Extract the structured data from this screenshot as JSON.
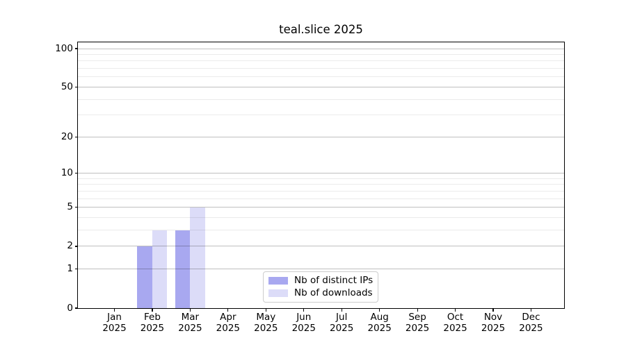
{
  "chart_data": {
    "type": "bar",
    "title": "teal.slice 2025",
    "categories": [
      "Jan",
      "Feb",
      "Mar",
      "Apr",
      "May",
      "Jun",
      "Jul",
      "Aug",
      "Sep",
      "Oct",
      "Nov",
      "Dec"
    ],
    "category_year": "2025",
    "series": [
      {
        "name": "Nb of distinct IPs",
        "color": "#a8a8f0",
        "values": [
          0,
          2,
          3,
          0,
          0,
          0,
          0,
          0,
          0,
          0,
          0,
          0
        ]
      },
      {
        "name": "Nb of downloads",
        "color": "#dcdcf8",
        "values": [
          0,
          3,
          5,
          0,
          0,
          0,
          0,
          0,
          0,
          0,
          0,
          0
        ]
      }
    ],
    "y_scale": "log1p",
    "ylim": [
      0,
      112
    ],
    "y_major_ticks": [
      0,
      1,
      2,
      5,
      10,
      20,
      50,
      100
    ],
    "y_minor_ticks": [
      3,
      4,
      6,
      7,
      8,
      9,
      30,
      40,
      60,
      70,
      80,
      90
    ],
    "xlabel": "",
    "ylabel": "",
    "grid": true,
    "legend_position": "lower center"
  },
  "colors": {
    "bar_distinct_ips": "#a8a8f0",
    "bar_downloads": "#dcdcf8",
    "major_grid": "rgba(0,0,0,0.25)",
    "minor_grid": "rgba(0,0,0,0.08)",
    "spine": "#000000",
    "legend_border": "#cccccc",
    "text": "#000000",
    "background": "#ffffff"
  }
}
